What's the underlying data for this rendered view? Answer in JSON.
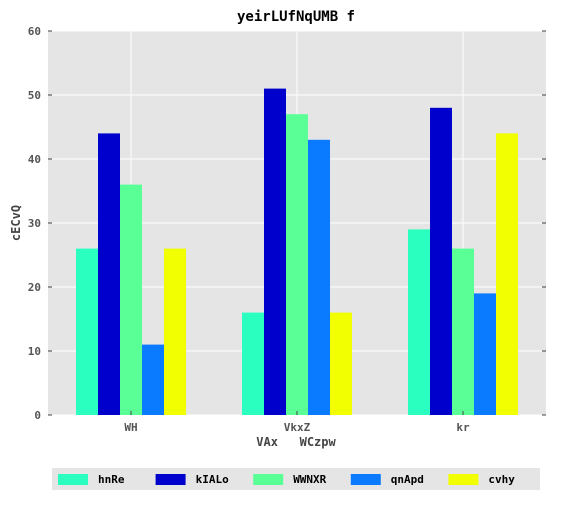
{
  "chart_data": {
    "type": "bar",
    "title": "yeirLUfNqUMB f",
    "xlabel": "VAx   WCzpw",
    "ylabel": "cECvQ",
    "ylim": [
      0,
      60
    ],
    "yticks": [
      0,
      10,
      20,
      30,
      40,
      50,
      60
    ],
    "categories": [
      "WH",
      "VkxZ",
      "kr"
    ],
    "grid": true,
    "legend_position": "bottom",
    "series": [
      {
        "name": "hnRe",
        "color": "#2bffbf",
        "values": [
          26,
          16,
          29
        ]
      },
      {
        "name": "kIALo",
        "color": "#0000cc",
        "values": [
          44,
          51,
          48
        ]
      },
      {
        "name": "WWNXR",
        "color": "#5aff96",
        "values": [
          36,
          47,
          26
        ]
      },
      {
        "name": "qnApd",
        "color": "#0a7bff",
        "values": [
          11,
          43,
          19
        ]
      },
      {
        "name": "cvhy",
        "color": "#f2ff00",
        "values": [
          26,
          16,
          44
        ]
      }
    ],
    "colors": {
      "plot_background": "#e5e5e5",
      "grid": "#ffffff",
      "legend_background": "#e5e5e5"
    }
  }
}
